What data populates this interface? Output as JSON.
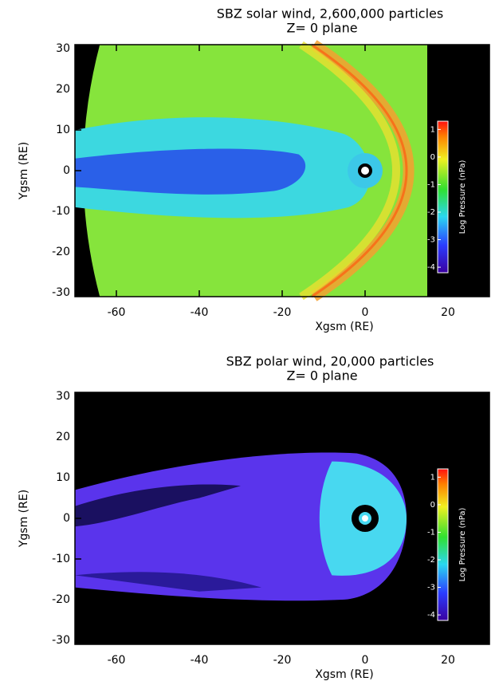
{
  "chart_data": [
    {
      "type": "heatmap",
      "title": "SBZ solar wind, 2,600,000 particles",
      "subtitle": "Z= 0 plane",
      "xlabel": "Xgsm (RE)",
      "ylabel": "Ygsm (RE)",
      "xlim": [
        -70,
        30
      ],
      "ylim": [
        -31,
        31
      ],
      "xticks": [
        -60,
        -40,
        -20,
        0,
        20
      ],
      "yticks": [
        -30,
        -20,
        -10,
        0,
        10,
        20,
        30
      ],
      "colorbar": {
        "label": "Log Pressure (nPa)",
        "lim": [
          -4.2,
          1.3
        ],
        "ticks": [
          -4,
          -3,
          -2,
          -1,
          0,
          1
        ]
      }
    },
    {
      "type": "heatmap",
      "title": "SBZ polar wind, 20,000 particles",
      "subtitle": "Z= 0 plane",
      "xlabel": "Xgsm (RE)",
      "ylabel": "Ygsm (RE)",
      "xlim": [
        -70,
        30
      ],
      "ylim": [
        -31,
        31
      ],
      "xticks": [
        -60,
        -40,
        -20,
        0,
        20
      ],
      "yticks": [
        -30,
        -20,
        -10,
        0,
        10,
        20,
        30
      ],
      "colorbar": {
        "label": "Log Pressure (nPa)",
        "lim": [
          -4.2,
          1.3
        ],
        "ticks": [
          -4,
          -3,
          -2,
          -1,
          0,
          1
        ]
      }
    }
  ]
}
